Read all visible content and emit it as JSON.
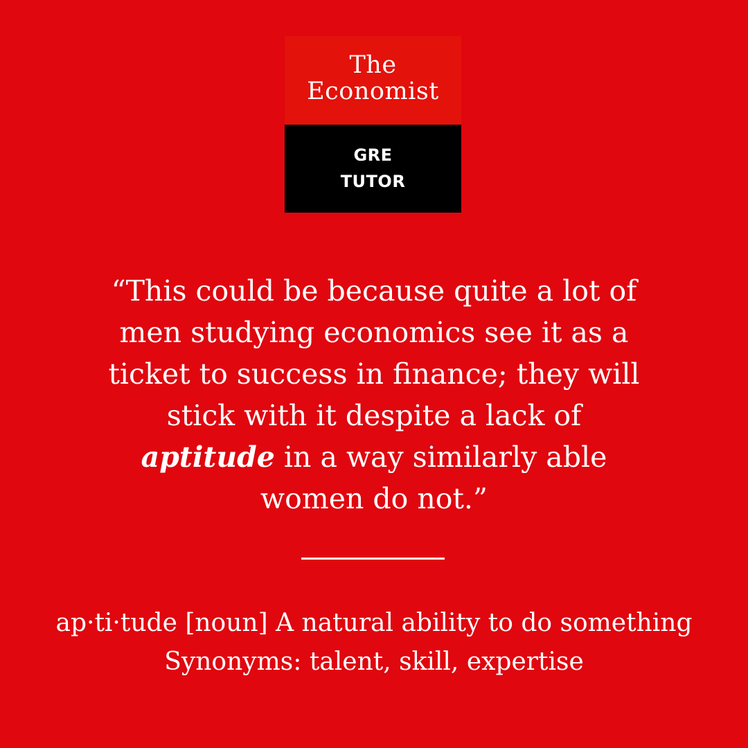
{
  "logo": {
    "line1": "The",
    "line2": "Economist",
    "sub1": "GRE",
    "sub2": "TUTOR"
  },
  "quote": {
    "line1": "“This could be because quite a lot of",
    "line2": "men studying economics see it as a",
    "line3": "ticket to success in finance; they will",
    "line4": "stick with it despite a lack of",
    "line5_keyword": "aptitude",
    "line5_rest": " in a way similarly able",
    "line6": "women do not.”"
  },
  "definition": {
    "line1": "ap·ti·tude [noun] A natural ability to do something",
    "line2": "Synonyms: talent, skill, expertise"
  },
  "colors": {
    "background": "#e0070f",
    "logo_red": "#e3120b",
    "logo_black": "#000000",
    "text": "#ffffff"
  }
}
